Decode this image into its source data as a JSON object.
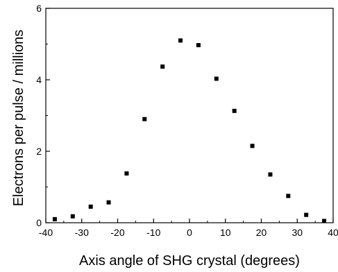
{
  "chart_data": {
    "type": "scatter",
    "title": "",
    "xlabel": "Axis angle of SHG crystal (degrees)",
    "ylabel": "Electrons per pulse / millions",
    "xlim": [
      -40,
      40
    ],
    "ylim": [
      0,
      6
    ],
    "xticks": [
      -40,
      -30,
      -20,
      -10,
      0,
      10,
      20,
      30,
      40
    ],
    "yticks": [
      0,
      2,
      4,
      6
    ],
    "xtick_labels": [
      "-40",
      "-30",
      "-20",
      "-10",
      "0",
      "10",
      "20",
      "30",
      "40"
    ],
    "ytick_labels": [
      "0",
      "2",
      "4",
      "6"
    ],
    "grid": false,
    "legend": "none",
    "marker": "square",
    "color": "#000000",
    "x": [
      -37.5,
      -32.5,
      -27.5,
      -22.5,
      -17.5,
      -12.5,
      -7.5,
      -2.5,
      2.5,
      7.5,
      12.5,
      17.5,
      22.5,
      27.5,
      32.5,
      37.5
    ],
    "y": [
      0.1,
      0.18,
      0.45,
      0.57,
      1.38,
      2.9,
      4.37,
      5.1,
      4.97,
      4.03,
      3.13,
      2.15,
      1.35,
      0.75,
      0.22,
      0.05
    ]
  }
}
